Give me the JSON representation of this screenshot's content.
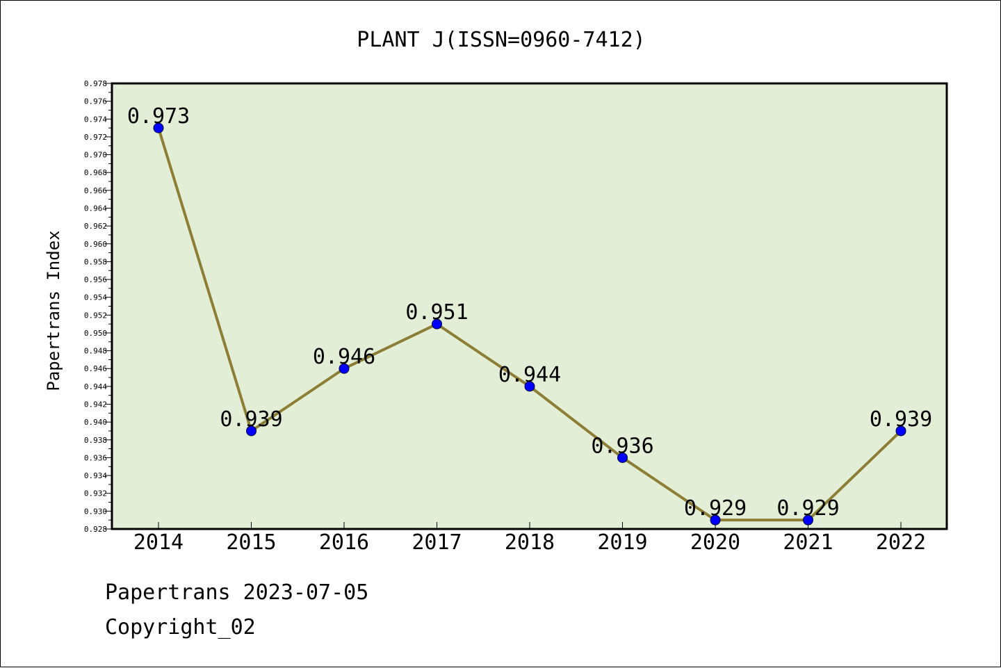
{
  "chart_data": {
    "type": "line",
    "title": "PLANT J(ISSN=0960-7412)",
    "xlabel": "",
    "ylabel": "Papertrans Index",
    "categories": [
      "2014",
      "2015",
      "2016",
      "2017",
      "2018",
      "2019",
      "2020",
      "2021",
      "2022"
    ],
    "series": [
      {
        "values": [
          0.973,
          0.939,
          0.946,
          0.951,
          0.944,
          0.936,
          0.929,
          0.929,
          0.939
        ],
        "labels": [
          "0.973",
          "0.939",
          "0.946",
          "0.951",
          "0.944",
          "0.936",
          "0.929",
          "0.929",
          "0.939"
        ]
      }
    ],
    "ylim": [
      0.928,
      0.978
    ],
    "yticks": [
      "0.928",
      "0.930",
      "0.932",
      "0.934",
      "0.936",
      "0.938",
      "0.940",
      "0.942",
      "0.944",
      "0.946",
      "0.948",
      "0.950",
      "0.952",
      "0.954",
      "0.956",
      "0.958",
      "0.960",
      "0.962",
      "0.964",
      "0.966",
      "0.968",
      "0.970",
      "0.972",
      "0.974",
      "0.976",
      "0.978"
    ],
    "grid": false,
    "legend": "none"
  },
  "colors": {
    "plot_background": "#e2efd6",
    "line": "#8c7e35",
    "marker": "#0000ff",
    "axis": "#000000"
  },
  "footer": {
    "line1": "Papertrans 2023-07-05",
    "line2": "Copyright_02"
  }
}
